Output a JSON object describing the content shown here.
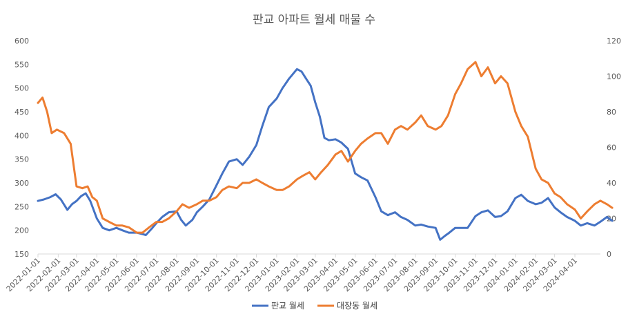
{
  "chart_data": {
    "type": "line",
    "title": "판교 아파트 월세 매물 수",
    "xlabel": "",
    "ylabel": "",
    "y_left_lim": [
      150,
      600
    ],
    "y_left_ticks": [
      150,
      200,
      250,
      300,
      350,
      400,
      450,
      500,
      550,
      600
    ],
    "y_right_lim": [
      0,
      120
    ],
    "y_right_ticks": [
      0,
      20,
      40,
      60,
      80,
      100,
      120
    ],
    "x_range": [
      "2022-01-01",
      "2024-05-10"
    ],
    "x_ticks": [
      "2022-01-01",
      "2022-02-01",
      "2022-03-01",
      "2022-04-01",
      "2022-05-01",
      "2022-06-01",
      "2022-07-01",
      "2022-08-01",
      "2022-09-01",
      "2022-10-01",
      "2022-11-01",
      "2022-12-01",
      "2023-01-01",
      "2023-02-01",
      "2023-03-01",
      "2023-04-01",
      "2023-05-01",
      "2023-06-01",
      "2023-07-01",
      "2023-08-01",
      "2023-09-01",
      "2023-10-01",
      "2023-11-01",
      "2023-12-01",
      "2024-01-01",
      "2024-02-01",
      "2024-03-01",
      "2024-04-01"
    ],
    "grid": false,
    "legend_position": "bottom",
    "series": [
      {
        "name": "판교 월세",
        "axis": "left",
        "color": "#4472C4",
        "points": [
          [
            "2022-01-01",
            262
          ],
          [
            "2022-01-10",
            265
          ],
          [
            "2022-01-20",
            270
          ],
          [
            "2022-01-28",
            276
          ],
          [
            "2022-02-05",
            265
          ],
          [
            "2022-02-15",
            243
          ],
          [
            "2022-02-22",
            255
          ],
          [
            "2022-03-01",
            262
          ],
          [
            "2022-03-08",
            272
          ],
          [
            "2022-03-15",
            278
          ],
          [
            "2022-03-22",
            262
          ],
          [
            "2022-04-01",
            225
          ],
          [
            "2022-04-10",
            205
          ],
          [
            "2022-04-20",
            200
          ],
          [
            "2022-05-01",
            205
          ],
          [
            "2022-05-10",
            200
          ],
          [
            "2022-05-20",
            195
          ],
          [
            "2022-06-01",
            195
          ],
          [
            "2022-06-15",
            190
          ],
          [
            "2022-06-25",
            205
          ],
          [
            "2022-07-01",
            215
          ],
          [
            "2022-07-10",
            228
          ],
          [
            "2022-07-20",
            238
          ],
          [
            "2022-08-01",
            240
          ],
          [
            "2022-08-08",
            222
          ],
          [
            "2022-08-15",
            210
          ],
          [
            "2022-08-25",
            222
          ],
          [
            "2022-09-01",
            238
          ],
          [
            "2022-09-10",
            250
          ],
          [
            "2022-09-20",
            265
          ],
          [
            "2022-10-01",
            295
          ],
          [
            "2022-10-10",
            320
          ],
          [
            "2022-10-20",
            345
          ],
          [
            "2022-11-01",
            350
          ],
          [
            "2022-11-10",
            338
          ],
          [
            "2022-11-20",
            355
          ],
          [
            "2022-12-01",
            380
          ],
          [
            "2022-12-10",
            420
          ],
          [
            "2022-12-20",
            460
          ],
          [
            "2023-01-01",
            478
          ],
          [
            "2023-01-10",
            500
          ],
          [
            "2023-01-20",
            520
          ],
          [
            "2023-02-01",
            540
          ],
          [
            "2023-02-08",
            535
          ],
          [
            "2023-02-15",
            520
          ],
          [
            "2023-02-22",
            505
          ],
          [
            "2023-03-01",
            470
          ],
          [
            "2023-03-08",
            440
          ],
          [
            "2023-03-15",
            395
          ],
          [
            "2023-03-22",
            390
          ],
          [
            "2023-04-01",
            392
          ],
          [
            "2023-04-10",
            385
          ],
          [
            "2023-04-20",
            372
          ],
          [
            "2023-05-01",
            320
          ],
          [
            "2023-05-10",
            312
          ],
          [
            "2023-05-20",
            305
          ],
          [
            "2023-06-01",
            270
          ],
          [
            "2023-06-10",
            240
          ],
          [
            "2023-06-20",
            232
          ],
          [
            "2023-07-01",
            238
          ],
          [
            "2023-07-10",
            228
          ],
          [
            "2023-07-20",
            222
          ],
          [
            "2023-08-01",
            210
          ],
          [
            "2023-08-10",
            212
          ],
          [
            "2023-08-20",
            208
          ],
          [
            "2023-09-01",
            205
          ],
          [
            "2023-09-08",
            180
          ],
          [
            "2023-09-15",
            188
          ],
          [
            "2023-09-22",
            195
          ],
          [
            "2023-10-01",
            205
          ],
          [
            "2023-10-10",
            205
          ],
          [
            "2023-10-20",
            205
          ],
          [
            "2023-11-01",
            230
          ],
          [
            "2023-11-10",
            238
          ],
          [
            "2023-11-20",
            242
          ],
          [
            "2023-12-01",
            228
          ],
          [
            "2023-12-10",
            230
          ],
          [
            "2023-12-20",
            240
          ],
          [
            "2024-01-01",
            268
          ],
          [
            "2024-01-10",
            275
          ],
          [
            "2024-01-20",
            262
          ],
          [
            "2024-02-01",
            255
          ],
          [
            "2024-02-10",
            258
          ],
          [
            "2024-02-20",
            268
          ],
          [
            "2024-03-01",
            248
          ],
          [
            "2024-03-10",
            238
          ],
          [
            "2024-03-20",
            228
          ],
          [
            "2024-04-01",
            220
          ],
          [
            "2024-04-10",
            210
          ],
          [
            "2024-04-20",
            215
          ],
          [
            "2024-05-01",
            210
          ],
          [
            "2024-05-10",
            218
          ],
          [
            "2024-05-20",
            228
          ],
          [
            "2024-05-28",
            220
          ]
        ]
      },
      {
        "name": "대장동 월세",
        "axis": "right",
        "color": "#ED7D31",
        "points": [
          [
            "2022-01-01",
            85
          ],
          [
            "2022-01-08",
            88
          ],
          [
            "2022-01-15",
            80
          ],
          [
            "2022-01-22",
            68
          ],
          [
            "2022-01-30",
            70
          ],
          [
            "2022-02-10",
            68
          ],
          [
            "2022-02-20",
            62
          ],
          [
            "2022-03-01",
            38
          ],
          [
            "2022-03-10",
            37
          ],
          [
            "2022-03-18",
            38
          ],
          [
            "2022-03-25",
            32
          ],
          [
            "2022-04-01",
            30
          ],
          [
            "2022-04-10",
            20
          ],
          [
            "2022-04-20",
            18
          ],
          [
            "2022-05-01",
            16
          ],
          [
            "2022-05-10",
            16
          ],
          [
            "2022-05-20",
            15
          ],
          [
            "2022-06-01",
            12
          ],
          [
            "2022-06-10",
            12
          ],
          [
            "2022-06-20",
            15
          ],
          [
            "2022-07-01",
            18
          ],
          [
            "2022-07-10",
            18
          ],
          [
            "2022-07-20",
            20
          ],
          [
            "2022-08-01",
            24
          ],
          [
            "2022-08-10",
            28
          ],
          [
            "2022-08-20",
            26
          ],
          [
            "2022-09-01",
            28
          ],
          [
            "2022-09-10",
            30
          ],
          [
            "2022-09-20",
            30
          ],
          [
            "2022-10-01",
            32
          ],
          [
            "2022-10-10",
            36
          ],
          [
            "2022-10-20",
            38
          ],
          [
            "2022-11-01",
            37
          ],
          [
            "2022-11-10",
            40
          ],
          [
            "2022-11-20",
            40
          ],
          [
            "2022-12-01",
            42
          ],
          [
            "2022-12-10",
            40
          ],
          [
            "2022-12-20",
            38
          ],
          [
            "2023-01-01",
            36
          ],
          [
            "2023-01-10",
            36
          ],
          [
            "2023-01-20",
            38
          ],
          [
            "2023-02-01",
            42
          ],
          [
            "2023-02-10",
            44
          ],
          [
            "2023-02-20",
            46
          ],
          [
            "2023-03-01",
            42
          ],
          [
            "2023-03-10",
            46
          ],
          [
            "2023-03-20",
            50
          ],
          [
            "2023-04-01",
            56
          ],
          [
            "2023-04-10",
            58
          ],
          [
            "2023-04-20",
            52
          ],
          [
            "2023-05-01",
            58
          ],
          [
            "2023-05-10",
            62
          ],
          [
            "2023-05-20",
            65
          ],
          [
            "2023-06-01",
            68
          ],
          [
            "2023-06-10",
            68
          ],
          [
            "2023-06-20",
            62
          ],
          [
            "2023-07-01",
            70
          ],
          [
            "2023-07-10",
            72
          ],
          [
            "2023-07-20",
            70
          ],
          [
            "2023-08-01",
            74
          ],
          [
            "2023-08-10",
            78
          ],
          [
            "2023-08-20",
            72
          ],
          [
            "2023-09-01",
            70
          ],
          [
            "2023-09-10",
            72
          ],
          [
            "2023-09-20",
            78
          ],
          [
            "2023-10-01",
            90
          ],
          [
            "2023-10-10",
            96
          ],
          [
            "2023-10-20",
            104
          ],
          [
            "2023-11-01",
            108
          ],
          [
            "2023-11-10",
            100
          ],
          [
            "2023-11-20",
            105
          ],
          [
            "2023-12-01",
            96
          ],
          [
            "2023-12-10",
            100
          ],
          [
            "2023-12-20",
            96
          ],
          [
            "2024-01-01",
            80
          ],
          [
            "2024-01-10",
            72
          ],
          [
            "2024-01-20",
            66
          ],
          [
            "2024-02-01",
            48
          ],
          [
            "2024-02-10",
            42
          ],
          [
            "2024-02-20",
            40
          ],
          [
            "2024-03-01",
            34
          ],
          [
            "2024-03-10",
            32
          ],
          [
            "2024-03-20",
            28
          ],
          [
            "2024-04-01",
            25
          ],
          [
            "2024-04-10",
            20
          ],
          [
            "2024-04-20",
            24
          ],
          [
            "2024-05-01",
            28
          ],
          [
            "2024-05-10",
            30
          ],
          [
            "2024-05-20",
            28
          ],
          [
            "2024-05-28",
            26
          ]
        ]
      }
    ]
  }
}
